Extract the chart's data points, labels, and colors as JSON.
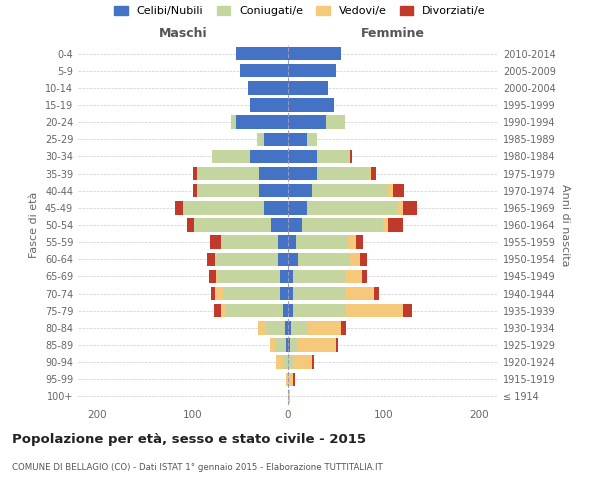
{
  "age_groups": [
    "100+",
    "95-99",
    "90-94",
    "85-89",
    "80-84",
    "75-79",
    "70-74",
    "65-69",
    "60-64",
    "55-59",
    "50-54",
    "45-49",
    "40-44",
    "35-39",
    "30-34",
    "25-29",
    "20-24",
    "15-19",
    "10-14",
    "5-9",
    "0-4"
  ],
  "birth_years": [
    "≤ 1914",
    "1915-1919",
    "1920-1924",
    "1925-1929",
    "1930-1934",
    "1935-1939",
    "1940-1944",
    "1945-1949",
    "1950-1954",
    "1955-1959",
    "1960-1964",
    "1965-1969",
    "1970-1974",
    "1975-1979",
    "1980-1984",
    "1985-1989",
    "1990-1994",
    "1995-1999",
    "2000-2004",
    "2005-2009",
    "2010-2014"
  ],
  "male": {
    "celibi": [
      0,
      0,
      0,
      2,
      3,
      5,
      8,
      8,
      10,
      10,
      18,
      25,
      30,
      30,
      40,
      25,
      55,
      40,
      42,
      50,
      55
    ],
    "coniugati": [
      0,
      0,
      5,
      12,
      20,
      60,
      60,
      65,
      65,
      60,
      80,
      85,
      65,
      65,
      40,
      8,
      5,
      0,
      0,
      0,
      0
    ],
    "vedovi": [
      0,
      2,
      8,
      5,
      8,
      5,
      8,
      2,
      2,
      0,
      0,
      0,
      0,
      0,
      0,
      0,
      0,
      0,
      0,
      0,
      0
    ],
    "divorziati": [
      0,
      0,
      0,
      0,
      0,
      8,
      5,
      8,
      8,
      12,
      8,
      8,
      5,
      5,
      0,
      0,
      0,
      0,
      0,
      0,
      0
    ]
  },
  "female": {
    "nubili": [
      0,
      0,
      0,
      2,
      3,
      5,
      5,
      5,
      10,
      8,
      15,
      20,
      25,
      30,
      30,
      20,
      40,
      48,
      42,
      50,
      55
    ],
    "coniugate": [
      0,
      0,
      5,
      8,
      18,
      55,
      55,
      55,
      55,
      55,
      85,
      95,
      80,
      55,
      35,
      10,
      20,
      0,
      0,
      0,
      0
    ],
    "vedove": [
      2,
      5,
      20,
      40,
      35,
      60,
      30,
      18,
      10,
      8,
      5,
      5,
      5,
      2,
      0,
      0,
      0,
      0,
      0,
      0,
      0
    ],
    "divorziate": [
      0,
      2,
      2,
      2,
      5,
      10,
      5,
      5,
      8,
      8,
      15,
      15,
      12,
      5,
      2,
      0,
      0,
      0,
      0,
      0,
      0
    ]
  },
  "colors": {
    "celibi": "#4472c4",
    "coniugati": "#c5d5a0",
    "vedovi": "#f5c87a",
    "divorziati": "#c0392b"
  },
  "xlim": 220,
  "title": "Popolazione per età, sesso e stato civile - 2015",
  "subtitle": "COMUNE DI BELLAGIO (CO) - Dati ISTAT 1° gennaio 2015 - Elaborazione TUTTITALIA.IT",
  "ylabel_left": "Fasce di età",
  "ylabel_right": "Anni di nascita",
  "xlabel_male": "Maschi",
  "xlabel_female": "Femmine",
  "legend_labels": [
    "Celibi/Nubili",
    "Coniugati/e",
    "Vedovi/e",
    "Divorziati/e"
  ],
  "bg_color": "#ffffff",
  "grid_color": "#cccccc"
}
